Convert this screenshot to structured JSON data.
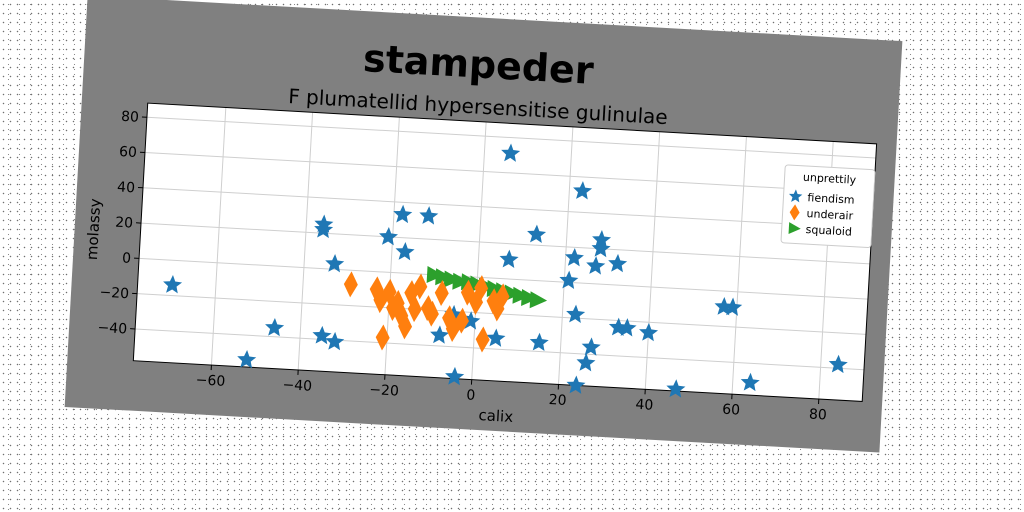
{
  "colors": {
    "figure_bg": "#808080",
    "plot_bg": "#ffffff",
    "grid": "#cfcfcf",
    "fiendism": "#1f77b4",
    "underair": "#ff7f0e",
    "squaloid": "#2ca02c"
  },
  "chart_data": {
    "type": "scatter",
    "suptitle": "stampeder",
    "title": "F plumatellid hypersensitise gulinulae",
    "xlabel": "calix",
    "ylabel": "molassy",
    "xlim": [
      -78,
      90
    ],
    "ylim": [
      -58,
      88
    ],
    "xticks": [
      -60,
      -40,
      -20,
      0,
      20,
      40,
      60,
      80
    ],
    "yticks": [
      -40,
      -20,
      0,
      20,
      40,
      60,
      80
    ],
    "grid": true,
    "legend": {
      "title": "unprettily",
      "placement": "upper right",
      "entries": [
        "fiendism",
        "underair",
        "squaloid"
      ]
    },
    "series": [
      {
        "name": "fiendism",
        "marker": "star",
        "points": [
          [
            -70,
            -14
          ],
          [
            -52,
            -54
          ],
          [
            -46,
            -35
          ],
          [
            -36,
            22
          ],
          [
            -36,
            25
          ],
          [
            -35,
            -38
          ],
          [
            -33,
            3
          ],
          [
            -32,
            -41
          ],
          [
            -21,
            20
          ],
          [
            -18,
            33
          ],
          [
            -17,
            12
          ],
          [
            -12,
            33
          ],
          [
            -8,
            -34
          ],
          [
            -5,
            -22
          ],
          [
            -4,
            -57
          ],
          [
            -3,
            -24
          ],
          [
            -1,
            -25
          ],
          [
            5,
            -34
          ],
          [
            6,
            71
          ],
          [
            7,
            11
          ],
          [
            13,
            26
          ],
          [
            15,
            -35
          ],
          [
            21,
            1
          ],
          [
            22,
            14
          ],
          [
            23,
            52
          ],
          [
            23,
            -18
          ],
          [
            24,
            -58
          ],
          [
            26,
            -45
          ],
          [
            27,
            10
          ],
          [
            27,
            -36
          ],
          [
            28,
            20
          ],
          [
            28,
            25
          ],
          [
            32,
            12
          ],
          [
            33,
            -24
          ],
          [
            35,
            -24
          ],
          [
            40,
            -26
          ],
          [
            47,
            -57
          ],
          [
            57,
            -9
          ],
          [
            59,
            -9
          ],
          [
            64,
            -51
          ],
          [
            84,
            -38
          ]
        ]
      },
      {
        "name": "underair",
        "marker": "thin_diamond",
        "points": [
          [
            -29,
            -8
          ],
          [
            -23,
            -10
          ],
          [
            -22,
            -16
          ],
          [
            -21,
            -37
          ],
          [
            -20,
            -11
          ],
          [
            -19,
            -20
          ],
          [
            -18,
            -17
          ],
          [
            -17,
            -24
          ],
          [
            -16,
            -30
          ],
          [
            -15,
            -11
          ],
          [
            -14,
            -20
          ],
          [
            -13,
            -7
          ],
          [
            -11,
            -19
          ],
          [
            -10,
            -22
          ],
          [
            -8,
            -10
          ],
          [
            -6,
            -24
          ],
          [
            -5,
            -30
          ],
          [
            -3,
            -25
          ],
          [
            -2,
            -9
          ],
          [
            0,
            -14
          ],
          [
            1,
            -6
          ],
          [
            2,
            -35
          ],
          [
            4,
            -13
          ],
          [
            5,
            -17
          ],
          [
            6,
            -10
          ]
        ]
      },
      {
        "name": "squaloid",
        "marker": "triangle_right",
        "points": [
          [
            -10,
            0
          ],
          [
            -8,
            -1
          ],
          [
            -6,
            -2
          ],
          [
            -4,
            -3
          ],
          [
            -2,
            -3
          ],
          [
            0,
            -4
          ],
          [
            2,
            -5
          ],
          [
            4,
            -6
          ],
          [
            6,
            -7
          ],
          [
            8,
            -8
          ],
          [
            10,
            -9
          ],
          [
            12,
            -10
          ],
          [
            14,
            -11
          ]
        ]
      }
    ]
  }
}
